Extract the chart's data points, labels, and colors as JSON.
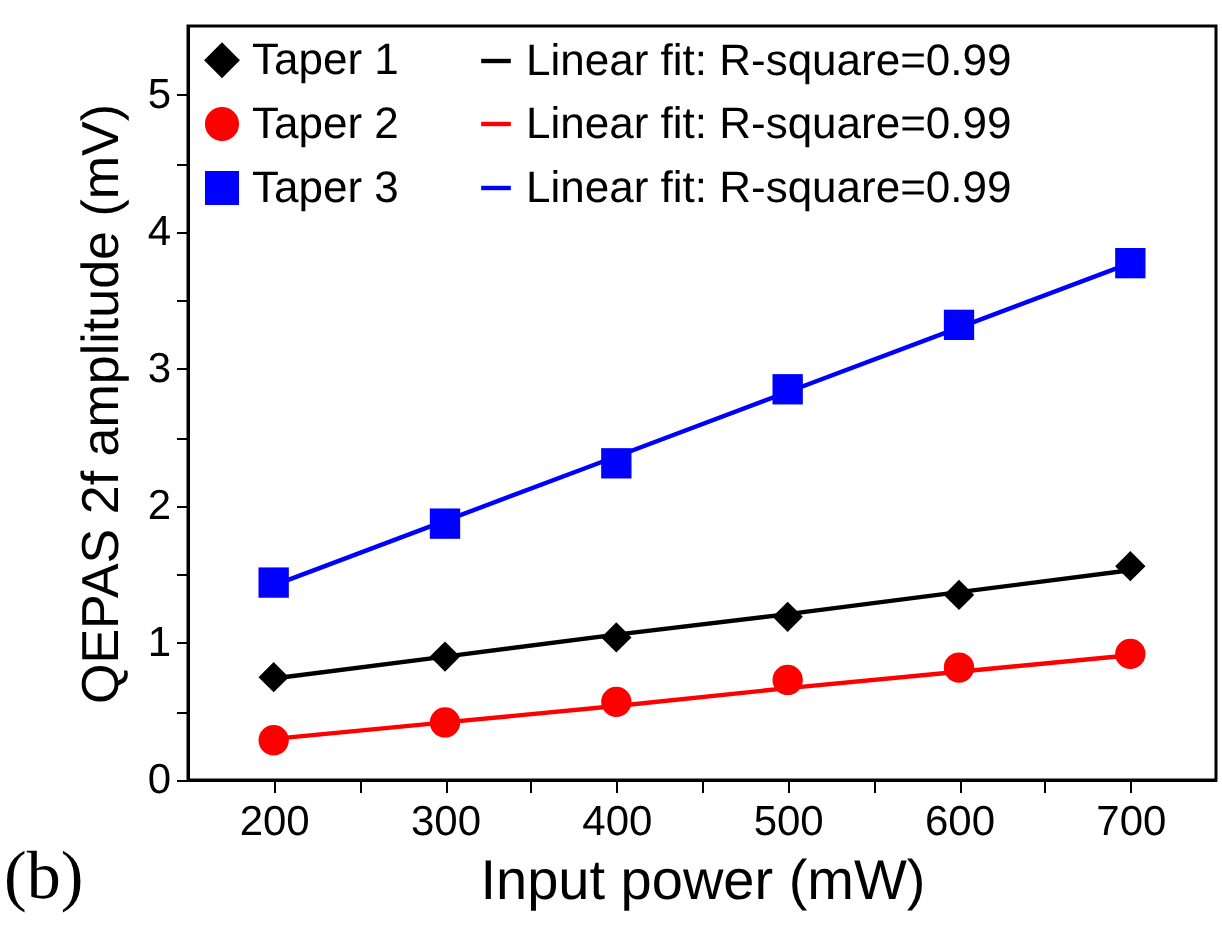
{
  "chart_data": {
    "type": "scatter",
    "xlabel": "Input power (mW)",
    "ylabel": "QEPAS 2f amplitude (mV)",
    "annotations": [
      "(b)"
    ],
    "x": [
      200,
      300,
      400,
      500,
      600,
      700
    ],
    "series": [
      {
        "name": "Taper 1",
        "color": "#000000",
        "marker": "diamond",
        "values": [
          0.75,
          0.9,
          1.04,
          1.19,
          1.35,
          1.56
        ]
      },
      {
        "name": "Linear fit: R-square=0.99",
        "type": "line",
        "color": "#000000",
        "values": [
          0.74,
          0.9,
          1.06,
          1.21,
          1.37,
          1.53
        ]
      },
      {
        "name": "Taper 2",
        "color": "#ff0000",
        "marker": "circle",
        "values": [
          0.29,
          0.42,
          0.57,
          0.73,
          0.82,
          0.92
        ]
      },
      {
        "name": "Linear fit: R-square=0.99",
        "type": "line",
        "color": "#ff0000",
        "values": [
          0.3,
          0.42,
          0.54,
          0.67,
          0.79,
          0.91
        ]
      },
      {
        "name": "Taper 3",
        "color": "#0000ff",
        "marker": "square",
        "values": [
          1.44,
          1.87,
          2.31,
          2.85,
          3.32,
          3.77
        ]
      },
      {
        "name": "Linear fit: R-square=0.99",
        "type": "line",
        "color": "#0000ff",
        "values": [
          1.42,
          1.89,
          2.36,
          2.83,
          3.3,
          3.77
        ]
      }
    ],
    "xlim": [
      150,
      750
    ],
    "xticks": [
      200,
      {
        "value": 250,
        "label": null
      },
      300,
      {
        "value": 350,
        "label": null
      },
      400,
      {
        "value": 450,
        "label": null
      },
      500,
      {
        "value": 550,
        "label": null
      },
      600,
      {
        "value": 650,
        "label": null
      },
      700
    ],
    "ylim": [
      0,
      5.5
    ],
    "yticks": [
      0,
      {
        "value": 0.5,
        "label": null
      },
      1,
      {
        "value": 1.5,
        "label": null
      },
      2,
      {
        "value": 2.5,
        "label": null
      },
      3,
      {
        "value": 3.5,
        "label": null
      },
      4,
      {
        "value": 4.5,
        "label": null
      },
      5
    ],
    "legend": "top left",
    "grid": false
  }
}
